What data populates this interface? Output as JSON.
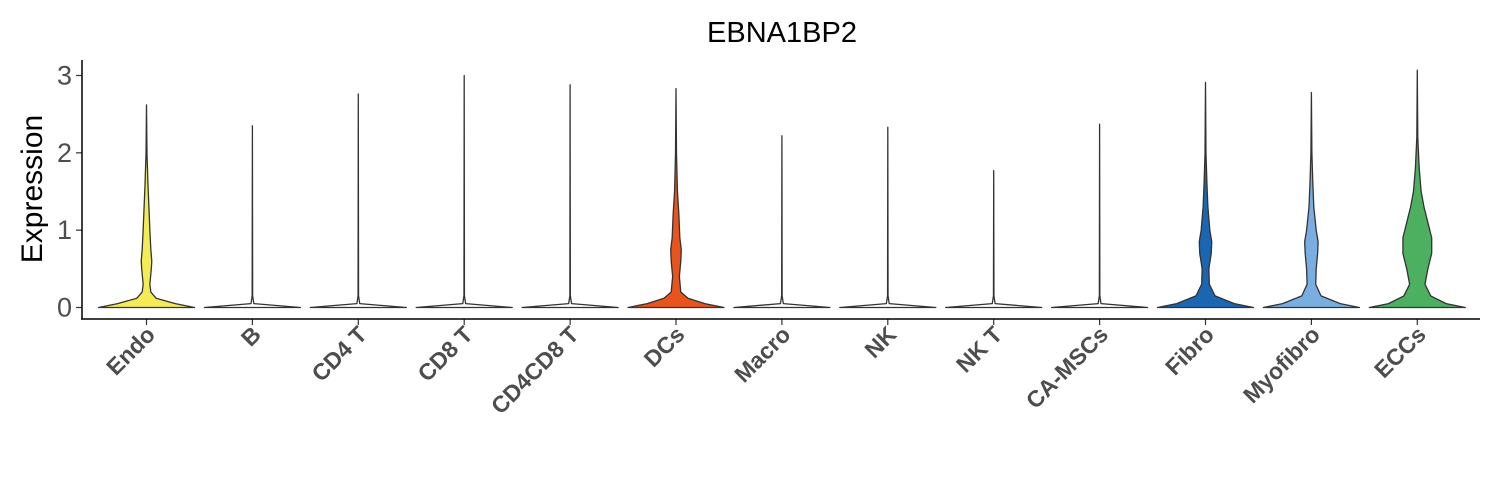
{
  "chart_data": {
    "type": "violin",
    "title": "EBNA1BP2",
    "xlabel": "",
    "ylabel": "Expression",
    "ylim": [
      -0.15,
      3.25
    ],
    "yticks": [
      0,
      1,
      2,
      3
    ],
    "grid": false,
    "legend": "none",
    "categories": [
      "Endo",
      "B",
      "CD4 T",
      "CD8 T",
      "CD4CD8 T",
      "DCs",
      "Macro",
      "NK",
      "NK T",
      "CA-MSCs",
      "Fibro",
      "Myofibro",
      "ECCs"
    ],
    "colors": [
      "#f5ec55",
      "#ffffff",
      "#ffffff",
      "#ffffff",
      "#ffffff",
      "#e8541c",
      "#ffffff",
      "#ffffff",
      "#ffffff",
      "#ffffff",
      "#1a66b3",
      "#7aaee0",
      "#4db061"
    ],
    "max_values": [
      2.62,
      2.35,
      2.76,
      3.0,
      2.88,
      2.83,
      2.22,
      2.33,
      1.77,
      2.37,
      2.91,
      2.78,
      3.07
    ],
    "density_profiles": [
      [
        [
          0,
          1.0
        ],
        [
          0.05,
          0.6
        ],
        [
          0.12,
          0.2
        ],
        [
          0.2,
          0.09
        ],
        [
          0.3,
          0.07
        ],
        [
          0.5,
          0.1
        ],
        [
          0.6,
          0.11
        ],
        [
          0.75,
          0.09
        ],
        [
          1.0,
          0.07
        ],
        [
          1.3,
          0.05
        ],
        [
          1.6,
          0.03
        ],
        [
          2.0,
          0.01
        ],
        [
          2.62,
          0
        ]
      ],
      [
        [
          0,
          1.0
        ],
        [
          0.05,
          0.03
        ],
        [
          0.15,
          0.005
        ],
        [
          2.35,
          0
        ]
      ],
      [
        [
          0,
          1.0
        ],
        [
          0.05,
          0.03
        ],
        [
          0.15,
          0.005
        ],
        [
          2.76,
          0
        ]
      ],
      [
        [
          0,
          1.0
        ],
        [
          0.05,
          0.03
        ],
        [
          0.15,
          0.005
        ],
        [
          3.0,
          0
        ]
      ],
      [
        [
          0,
          1.0
        ],
        [
          0.05,
          0.03
        ],
        [
          0.15,
          0.005
        ],
        [
          2.88,
          0
        ]
      ],
      [
        [
          0,
          1.0
        ],
        [
          0.05,
          0.6
        ],
        [
          0.12,
          0.25
        ],
        [
          0.2,
          0.1
        ],
        [
          0.4,
          0.07
        ],
        [
          0.6,
          0.1
        ],
        [
          0.75,
          0.11
        ],
        [
          0.9,
          0.08
        ],
        [
          1.2,
          0.06
        ],
        [
          1.5,
          0.03
        ],
        [
          2.0,
          0.01
        ],
        [
          2.83,
          0
        ]
      ],
      [
        [
          0,
          1.0
        ],
        [
          0.05,
          0.03
        ],
        [
          0.15,
          0.005
        ],
        [
          2.22,
          0
        ]
      ],
      [
        [
          0,
          1.0
        ],
        [
          0.05,
          0.03
        ],
        [
          0.15,
          0.005
        ],
        [
          2.33,
          0
        ]
      ],
      [
        [
          0,
          1.0
        ],
        [
          0.05,
          0.03
        ],
        [
          0.15,
          0.005
        ],
        [
          1.77,
          0
        ]
      ],
      [
        [
          0,
          1.0
        ],
        [
          0.05,
          0.03
        ],
        [
          0.15,
          0.005
        ],
        [
          2.37,
          0
        ]
      ],
      [
        [
          0,
          1.0
        ],
        [
          0.05,
          0.6
        ],
        [
          0.15,
          0.2
        ],
        [
          0.3,
          0.08
        ],
        [
          0.5,
          0.07
        ],
        [
          0.7,
          0.12
        ],
        [
          0.85,
          0.13
        ],
        [
          1.0,
          0.09
        ],
        [
          1.3,
          0.05
        ],
        [
          1.6,
          0.03
        ],
        [
          2.0,
          0.01
        ],
        [
          2.91,
          0
        ]
      ],
      [
        [
          0,
          1.0
        ],
        [
          0.05,
          0.6
        ],
        [
          0.15,
          0.2
        ],
        [
          0.3,
          0.09
        ],
        [
          0.5,
          0.1
        ],
        [
          0.7,
          0.13
        ],
        [
          0.85,
          0.14
        ],
        [
          1.0,
          0.1
        ],
        [
          1.3,
          0.05
        ],
        [
          1.6,
          0.03
        ],
        [
          2.0,
          0.01
        ],
        [
          2.78,
          0
        ]
      ],
      [
        [
          0,
          1.0
        ],
        [
          0.05,
          0.6
        ],
        [
          0.15,
          0.28
        ],
        [
          0.3,
          0.16
        ],
        [
          0.5,
          0.22
        ],
        [
          0.7,
          0.3
        ],
        [
          0.9,
          0.3
        ],
        [
          1.1,
          0.22
        ],
        [
          1.3,
          0.14
        ],
        [
          1.5,
          0.08
        ],
        [
          1.8,
          0.04
        ],
        [
          2.2,
          0.01
        ],
        [
          3.07,
          0
        ]
      ]
    ]
  }
}
